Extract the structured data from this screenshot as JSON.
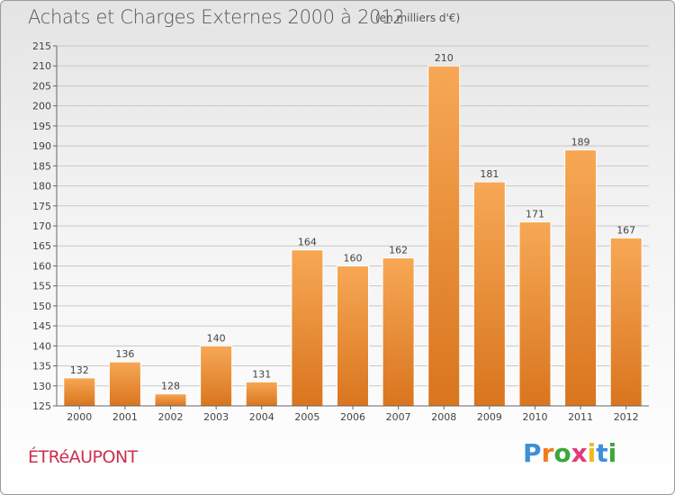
{
  "title": "Achats et Charges Externes 2000 à 2012",
  "subtitle": "(en milliers d'€)",
  "commune": "ÉTRéAUPONT",
  "logo": {
    "letters": [
      "P",
      "r",
      "o",
      "x",
      "i",
      "t",
      "i"
    ],
    "colors": [
      "#3c8fd8",
      "#f07d1e",
      "#3ca63c",
      "#e03b7a",
      "#f0b81e",
      "#3c8fd8",
      "#3ca63c"
    ]
  },
  "colors": {
    "bar_top": "#f7a855",
    "bar_bottom": "#d9751e",
    "grid": "#c8c8c8",
    "title": "#555555",
    "commune": "#cc2f50"
  },
  "chart_data": {
    "type": "bar",
    "title": "Achats et Charges Externes 2000 à 2012",
    "subtitle": "(en milliers d'€)",
    "categories": [
      "2000",
      "2001",
      "2002",
      "2003",
      "2004",
      "2005",
      "2006",
      "2007",
      "2008",
      "2009",
      "2010",
      "2011",
      "2012"
    ],
    "values": [
      132,
      136,
      128,
      140,
      131,
      164,
      160,
      162,
      210,
      181,
      171,
      189,
      167
    ],
    "ylim": [
      125,
      215
    ],
    "yticks": [
      125,
      130,
      135,
      140,
      145,
      150,
      155,
      160,
      165,
      170,
      175,
      180,
      185,
      190,
      195,
      200,
      205,
      210,
      215
    ],
    "xlabel": "",
    "ylabel": "",
    "grid": true
  }
}
